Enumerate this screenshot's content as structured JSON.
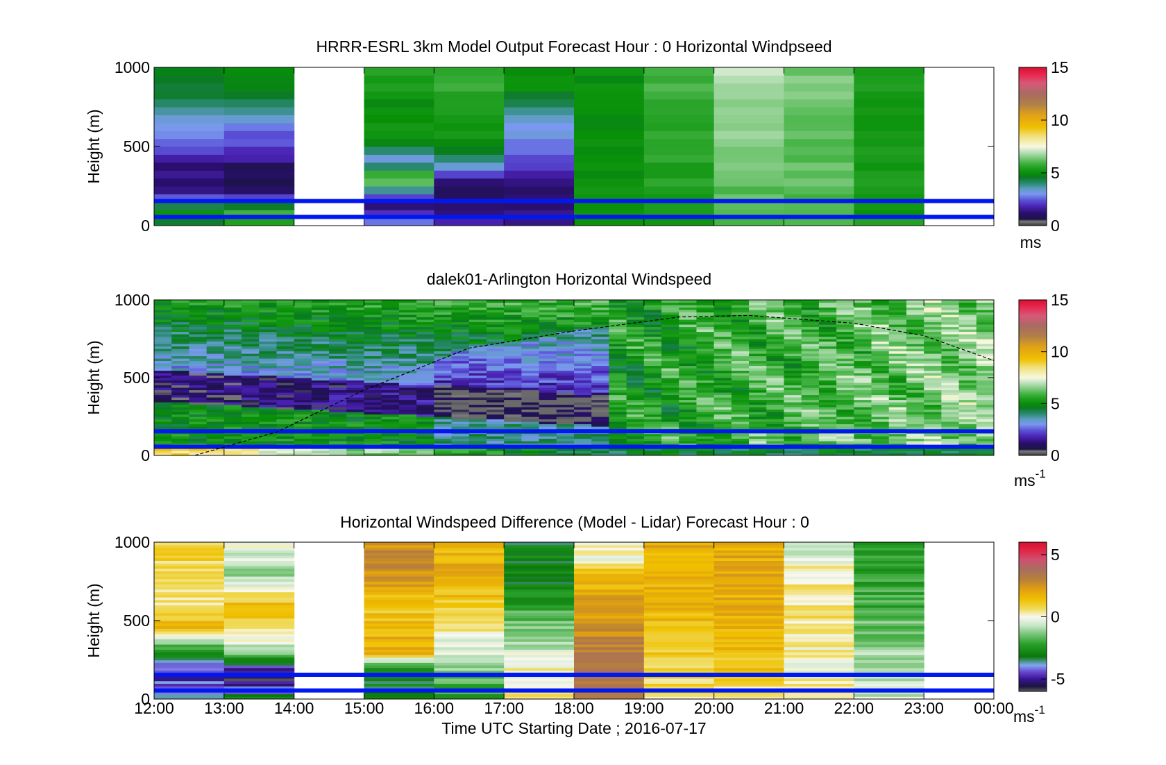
{
  "figure": {
    "xlabel": "Time UTC  Starting Date ; 2016-07-17",
    "xtick_labels": [
      "12:00",
      "13:00",
      "14:00",
      "15:00",
      "16:00",
      "17:00",
      "18:00",
      "19:00",
      "20:00",
      "21:00",
      "22:00",
      "23:00",
      "00:00"
    ]
  },
  "chart_data": [
    {
      "type": "heatmap",
      "title": "HRRR-ESRL 3km Model Output   Forecast Hour : 0 Horizontal Windpseed",
      "ylabel": "Height (m)",
      "ylim": [
        0,
        1000
      ],
      "yticks": [
        0,
        500,
        1000
      ],
      "colorbar": {
        "label": "ms",
        "range": [
          0,
          15
        ],
        "ticks": [
          0,
          5,
          10,
          15
        ]
      },
      "reference_lines_m": [
        55,
        155
      ],
      "hourly_columns": [
        {
          "hour": "12:00",
          "profile_ms": [
            [
              0,
              4.5
            ],
            [
              100,
              5.5
            ],
            [
              200,
              1.6
            ],
            [
              350,
              1.2
            ],
            [
              500,
              2.3
            ],
            [
              650,
              3.2
            ],
            [
              800,
              4.2
            ],
            [
              1000,
              4.6
            ]
          ]
        },
        {
          "hour": "13:00",
          "profile_ms": [
            [
              0,
              5.0
            ],
            [
              100,
              6.0
            ],
            [
              200,
              1.0
            ],
            [
              350,
              0.8
            ],
            [
              500,
              2.2
            ],
            [
              650,
              3.0
            ],
            [
              800,
              4.6
            ],
            [
              1000,
              5.0
            ]
          ]
        },
        {
          "hour": "14:00",
          "profile_ms": null
        },
        {
          "hour": "15:00",
          "profile_ms": [
            [
              0,
              3.0
            ],
            [
              150,
              1.0
            ],
            [
              300,
              7.0
            ],
            [
              400,
              3.0
            ],
            [
              550,
              5.0
            ],
            [
              750,
              5.0
            ],
            [
              1000,
              5.5
            ]
          ]
        },
        {
          "hour": "16:00",
          "profile_ms": [
            [
              0,
              2.0
            ],
            [
              150,
              0.8
            ],
            [
              300,
              1.5
            ],
            [
              450,
              4.8
            ],
            [
              600,
              5.2
            ],
            [
              800,
              5.5
            ],
            [
              1000,
              5.8
            ]
          ]
        },
        {
          "hour": "17:00",
          "profile_ms": [
            [
              0,
              1.5
            ],
            [
              200,
              1.0
            ],
            [
              400,
              2.4
            ],
            [
              650,
              3.2
            ],
            [
              750,
              4.0
            ],
            [
              900,
              5.0
            ],
            [
              1000,
              5.2
            ]
          ]
        },
        {
          "hour": "18:00",
          "profile_ms": [
            [
              0,
              5.0
            ],
            [
              500,
              5.0
            ],
            [
              1000,
              5.0
            ]
          ]
        },
        {
          "hour": "19:00",
          "profile_ms": [
            [
              0,
              5.3
            ],
            [
              500,
              5.6
            ],
            [
              1000,
              6.0
            ]
          ]
        },
        {
          "hour": "20:00",
          "profile_ms": [
            [
              0,
              6.0
            ],
            [
              500,
              6.4
            ],
            [
              1000,
              7.0
            ]
          ]
        },
        {
          "hour": "21:00",
          "profile_ms": [
            [
              0,
              6.0
            ],
            [
              500,
              6.2
            ],
            [
              1000,
              6.4
            ]
          ]
        },
        {
          "hour": "22:00",
          "profile_ms": [
            [
              0,
              5.3
            ],
            [
              500,
              5.3
            ],
            [
              1000,
              5.3
            ]
          ]
        },
        {
          "hour": "23:00",
          "profile_ms": null
        }
      ]
    },
    {
      "type": "heatmap",
      "title": "dalek01-Arlington  Horizontal Windspeed",
      "ylabel": "Height (m)",
      "ylim": [
        0,
        1000
      ],
      "yticks": [
        0,
        500,
        1000
      ],
      "colorbar": {
        "label": "ms",
        "label_superscript": "-1",
        "range": [
          0,
          15
        ],
        "ticks": [
          0,
          5,
          10,
          15
        ]
      },
      "reference_lines_m": [
        55,
        155
      ],
      "boundary_layer_curve": {
        "style": "dashed",
        "points": [
          [
            "12:35",
            0
          ],
          [
            "13:45",
            150
          ],
          [
            "15:00",
            420
          ],
          [
            "16:30",
            690
          ],
          [
            "18:00",
            800
          ],
          [
            "19:30",
            890
          ],
          [
            "20:30",
            900
          ],
          [
            "22:00",
            850
          ],
          [
            "23:00",
            770
          ],
          [
            "00:00",
            610
          ]
        ]
      }
    },
    {
      "type": "heatmap",
      "title": "Horizontal Windspeed Difference (Model - Lidar) Forecast Hour : 0",
      "ylabel": "Height (m)",
      "ylim": [
        0,
        1000
      ],
      "yticks": [
        0,
        500,
        1000
      ],
      "colorbar": {
        "label": "ms",
        "label_superscript": "-1",
        "range": [
          -6,
          6
        ],
        "ticks": [
          -5,
          0,
          5
        ]
      },
      "reference_lines_m": [
        55,
        155
      ],
      "hourly_columns": [
        {
          "hour": "12:00",
          "profile_ms": [
            [
              0,
              -3.0
            ],
            [
              150,
              -5.0
            ],
            [
              300,
              -3.0
            ],
            [
              450,
              1.5
            ],
            [
              600,
              0.4
            ],
            [
              800,
              0.8
            ],
            [
              1000,
              1.0
            ]
          ]
        },
        {
          "hour": "13:00",
          "profile_ms": [
            [
              0,
              -3.0
            ],
            [
              150,
              -6.0
            ],
            [
              300,
              -1.0
            ],
            [
              450,
              0.5
            ],
            [
              600,
              1.5
            ],
            [
              800,
              -1.0
            ],
            [
              1000,
              0
            ]
          ]
        },
        {
          "hour": "14:00",
          "profile_ms": null
        },
        {
          "hour": "15:00",
          "profile_ms": [
            [
              0,
              -3.0
            ],
            [
              200,
              -3.0
            ],
            [
              300,
              2.0
            ],
            [
              600,
              1.0
            ],
            [
              850,
              3.0
            ],
            [
              1000,
              2.5
            ]
          ]
        },
        {
          "hour": "16:00",
          "profile_ms": [
            [
              0,
              -2.5
            ],
            [
              300,
              -0.5
            ],
            [
              600,
              1.0
            ],
            [
              800,
              2.0
            ],
            [
              1000,
              1.5
            ]
          ]
        },
        {
          "hour": "17:00",
          "profile_ms": [
            [
              0,
              0.5
            ],
            [
              200,
              0
            ],
            [
              500,
              -1.5
            ],
            [
              700,
              -3.0
            ],
            [
              1000,
              -3.0
            ]
          ]
        },
        {
          "hour": "18:00",
          "profile_ms": [
            [
              0,
              3.0
            ],
            [
              200,
              3.5
            ],
            [
              500,
              2.5
            ],
            [
              800,
              1.5
            ],
            [
              900,
              0
            ],
            [
              1000,
              0
            ]
          ]
        },
        {
          "hour": "19:00",
          "profile_ms": [
            [
              0,
              0.5
            ],
            [
              200,
              1.0
            ],
            [
              500,
              1.5
            ],
            [
              1000,
              1.8
            ]
          ]
        },
        {
          "hour": "20:00",
          "profile_ms": [
            [
              0,
              0.5
            ],
            [
              300,
              1.5
            ],
            [
              500,
              1.8
            ],
            [
              1000,
              1.9
            ]
          ]
        },
        {
          "hour": "21:00",
          "profile_ms": [
            [
              0,
              0.3
            ],
            [
              200,
              0
            ],
            [
              500,
              0.5
            ],
            [
              800,
              0.3
            ],
            [
              1000,
              -1.0
            ]
          ]
        },
        {
          "hour": "22:00",
          "profile_ms": [
            [
              0,
              -0.5
            ],
            [
              300,
              -1.0
            ],
            [
              600,
              -2.0
            ],
            [
              1000,
              -2.5
            ]
          ]
        },
        {
          "hour": "23:00",
          "profile_ms": null
        }
      ]
    }
  ]
}
